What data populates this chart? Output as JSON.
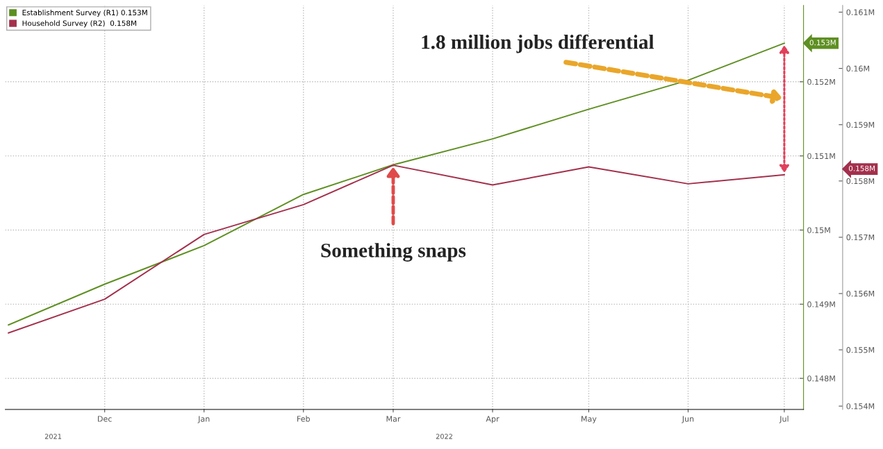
{
  "chart_data": {
    "type": "line",
    "x": [
      "2021-11",
      "2021-12",
      "2022-01",
      "2022-02",
      "2022-03",
      "2022-04",
      "2022-05",
      "2022-06",
      "2022-07"
    ],
    "series": [
      {
        "name": "Establishment Survey (R1) 0.153M",
        "color": "#5e8f22",
        "values": [
          0.14872,
          0.14927,
          0.14979,
          0.15048,
          0.15088,
          0.15123,
          0.15163,
          0.15202,
          0.15252
        ]
      },
      {
        "name": "Household Survey (R2)  0.158M",
        "color": "#a3304c",
        "axis": "y2",
        "values": [
          0.1553,
          0.1559,
          0.15705,
          0.15758,
          0.15828,
          0.15793,
          0.15825,
          0.15795,
          0.15811
        ]
      }
    ],
    "xlim": [
      "2021-10-31",
      "2022-07-07"
    ],
    "xticks": [
      {
        "value": "2021-12-01",
        "label": "Dec"
      },
      {
        "value": "2022-01-01",
        "label": "Jan"
      },
      {
        "value": "2022-02-01",
        "label": "Feb"
      },
      {
        "value": "2022-03-01",
        "label": "Mar"
      },
      {
        "value": "2022-04-01",
        "label": "Apr"
      },
      {
        "value": "2022-05-01",
        "label": "May"
      },
      {
        "value": "2022-06-01",
        "label": "Jun"
      },
      {
        "value": "2022-07-01",
        "label": "Jul"
      }
    ],
    "ylim": [
      0.14758,
      0.15303
    ],
    "yticks": [
      {
        "value": 0.148,
        "label": "0.148M"
      },
      {
        "value": 0.149,
        "label": "0.149M"
      },
      {
        "value": 0.15,
        "label": "0.15M"
      },
      {
        "value": 0.151,
        "label": "0.151M"
      },
      {
        "value": 0.152,
        "label": "0.152M"
      }
    ],
    "y2lim": [
      0.15394,
      0.16112
    ],
    "y2ticks": [
      {
        "value": 0.154,
        "label": "0.154M"
      },
      {
        "value": 0.155,
        "label": "0.155M"
      },
      {
        "value": 0.156,
        "label": "0.156M"
      },
      {
        "value": 0.157,
        "label": "0.157M"
      },
      {
        "value": 0.158,
        "label": "0.158M"
      },
      {
        "value": 0.159,
        "label": "0.159M"
      },
      {
        "value": 0.16,
        "label": "0.16M"
      },
      {
        "value": 0.161,
        "label": "0.161M"
      }
    ],
    "annotations": [
      "2021",
      "2022",
      {
        "text": "Something snaps",
        "x": "2022-03",
        "y": 0.15088
      },
      "1.8 million jobs differential",
      "0.153M",
      "0.158M"
    ],
    "grid": true,
    "legend": "top left",
    "marker": "none",
    "line_style": "solid"
  }
}
